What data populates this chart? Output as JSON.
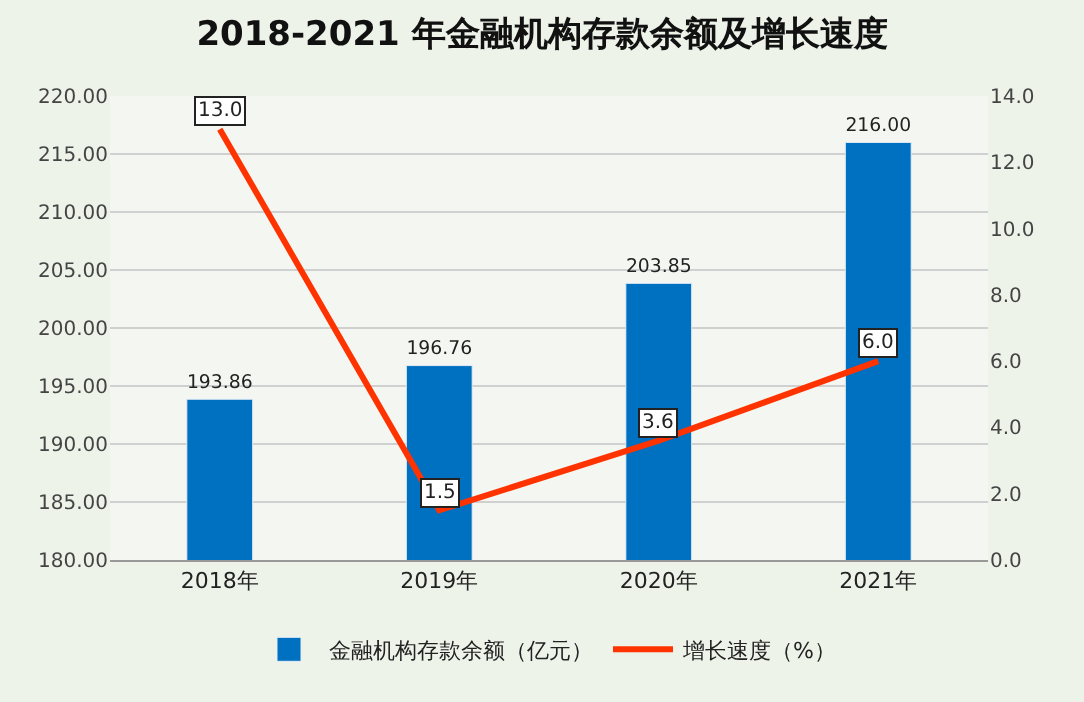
{
  "chart_data": {
    "type": "bar",
    "title": "2018-2021 年金融机构存款余额及增长速度",
    "categories": [
      "2018年",
      "2019年",
      "2020年",
      "2021年"
    ],
    "series": [
      {
        "name": "金融机构存款余额（亿元）",
        "color": "#0070c0",
        "values": [
          193.86,
          196.76,
          203.85,
          216.0
        ],
        "value_labels": [
          "193.86",
          "196.76",
          "203.85",
          "216.00"
        ]
      },
      {
        "name": "增长速度（%）",
        "type": "line",
        "axis": "y2",
        "color": "#ff3300",
        "values": [
          13.0,
          1.5,
          3.6,
          6.0
        ],
        "value_labels": [
          "13.0",
          "1.5",
          "3.6",
          "6.0"
        ]
      }
    ],
    "ylim": [
      180,
      220
    ],
    "yticks": [
      {
        "value": 180,
        "label": "180.00"
      },
      {
        "value": 185,
        "label": "185.00"
      },
      {
        "value": 190,
        "label": "190.00"
      },
      {
        "value": 195,
        "label": "195.00"
      },
      {
        "value": 200,
        "label": "200.00"
      },
      {
        "value": 205,
        "label": "205.00"
      },
      {
        "value": 210,
        "label": "210.00"
      },
      {
        "value": 215,
        "label": "215.00"
      },
      {
        "value": 220,
        "label": "220.00"
      }
    ],
    "y2lim": [
      0,
      14
    ],
    "y2ticks": [
      {
        "value": 0,
        "label": "0.0"
      },
      {
        "value": 2,
        "label": "2.0"
      },
      {
        "value": 4,
        "label": "4.0"
      },
      {
        "value": 6,
        "label": "6.0"
      },
      {
        "value": 8,
        "label": "8.0"
      },
      {
        "value": 10,
        "label": "10.0"
      },
      {
        "value": 12,
        "label": "12.0"
      },
      {
        "value": 14,
        "label": "14.0"
      }
    ],
    "grid": "y",
    "legend": "bottom",
    "line_style": "solid"
  }
}
